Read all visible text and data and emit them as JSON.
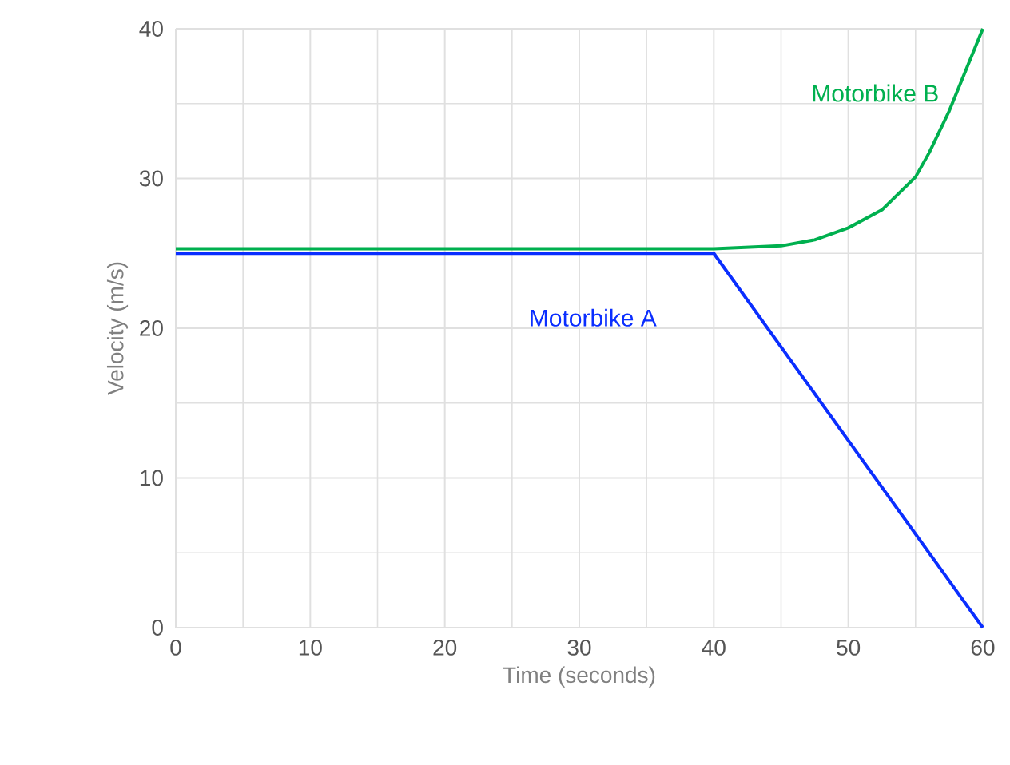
{
  "chart_data": {
    "type": "line",
    "xlabel": "Time (seconds)",
    "ylabel": "Velocity (m/s)",
    "xlim": [
      0,
      60
    ],
    "ylim": [
      0,
      40
    ],
    "xticks": [
      0,
      10,
      20,
      30,
      40,
      50,
      60
    ],
    "yticks": [
      0,
      10,
      20,
      30,
      40
    ],
    "grid": true,
    "line_style": "solid",
    "series": [
      {
        "name": "Motorbike A",
        "color": "#0a2eff",
        "x": [
          0,
          40,
          60
        ],
        "values": [
          25,
          25,
          0
        ]
      },
      {
        "name": "Motorbike B",
        "color": "#00b04f",
        "x": [
          0,
          40,
          45,
          47.5,
          50,
          52.5,
          55,
          56,
          57.5,
          58.5,
          60
        ],
        "values": [
          25.3,
          25.3,
          25.5,
          25.9,
          26.7,
          27.9,
          30.1,
          31.7,
          34.5,
          36.7,
          40
        ]
      }
    ]
  }
}
